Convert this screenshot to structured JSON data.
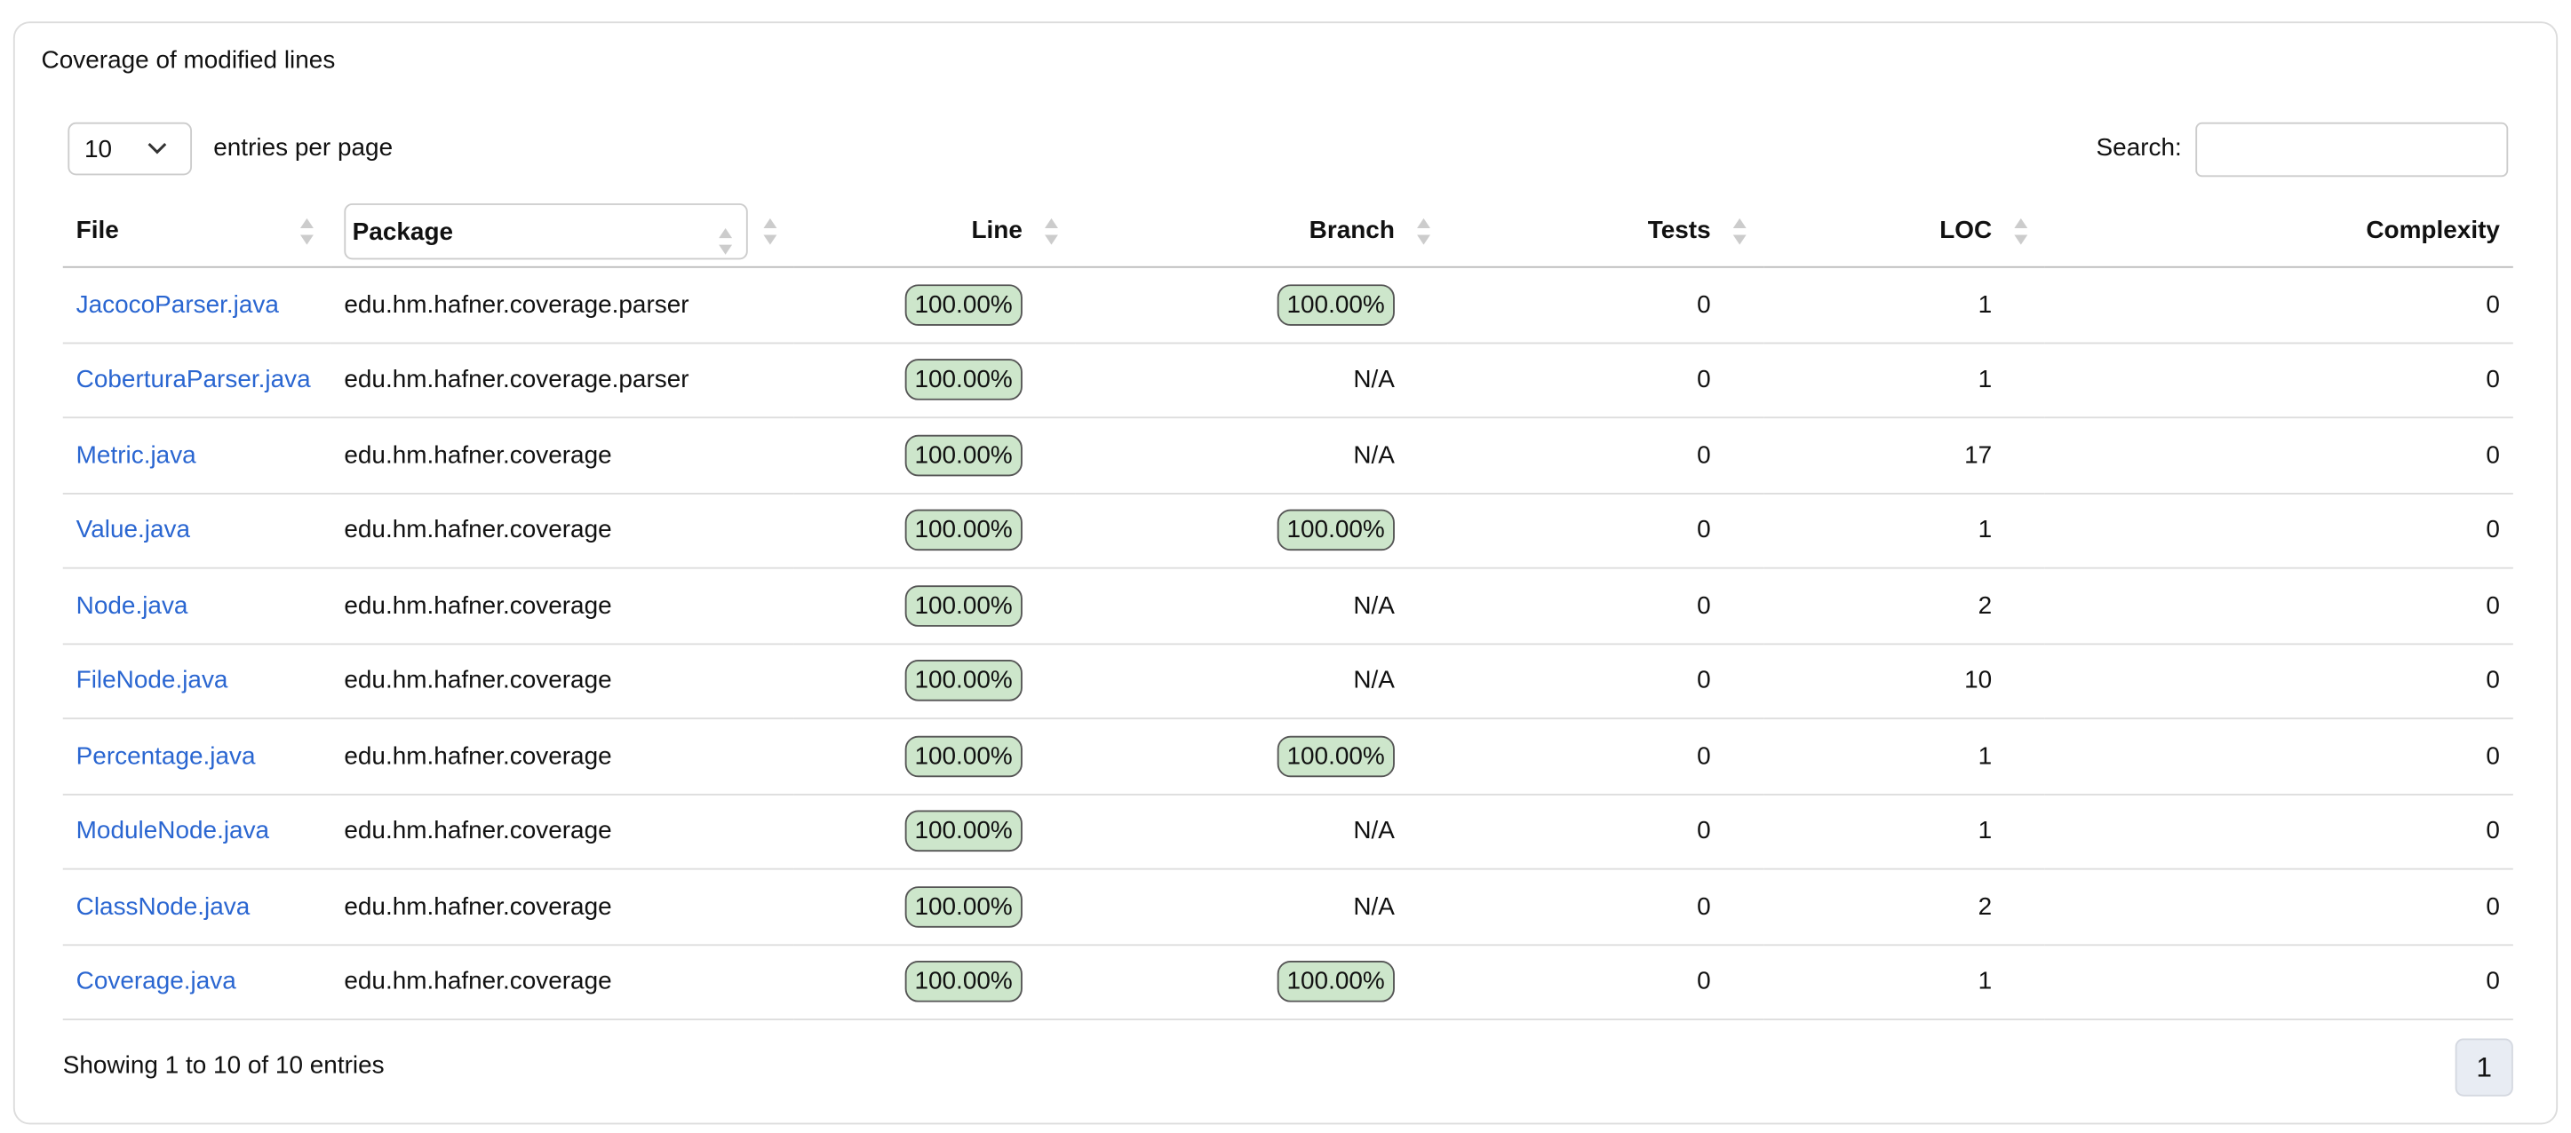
{
  "header": {
    "title": "Coverage of modified lines"
  },
  "controls": {
    "page_size": "10",
    "entries_label": "entries per page",
    "search_label": "Search:"
  },
  "table": {
    "columns": [
      "File",
      "Package",
      "Line",
      "Branch",
      "Tests",
      "LOC",
      "Complexity"
    ],
    "rows": [
      [
        "JacocoParser.java",
        "edu.hm.hafner.coverage.parser",
        "100.00%",
        "100.00%",
        0,
        1,
        0
      ],
      [
        "CoberturaParser.java",
        "edu.hm.hafner.coverage.parser",
        "100.00%",
        "N/A",
        0,
        1,
        0
      ],
      [
        "Metric.java",
        "edu.hm.hafner.coverage",
        "100.00%",
        "N/A",
        0,
        17,
        0
      ],
      [
        "Value.java",
        "edu.hm.hafner.coverage",
        "100.00%",
        "100.00%",
        0,
        1,
        0
      ],
      [
        "Node.java",
        "edu.hm.hafner.coverage",
        "100.00%",
        "N/A",
        0,
        2,
        0
      ],
      [
        "FileNode.java",
        "edu.hm.hafner.coverage",
        "100.00%",
        "N/A",
        0,
        10,
        0
      ],
      [
        "Percentage.java",
        "edu.hm.hafner.coverage",
        "100.00%",
        "100.00%",
        0,
        1,
        0
      ],
      [
        "ModuleNode.java",
        "edu.hm.hafner.coverage",
        "100.00%",
        "N/A",
        0,
        1,
        0
      ],
      [
        "ClassNode.java",
        "edu.hm.hafner.coverage",
        "100.00%",
        "N/A",
        0,
        2,
        0
      ],
      [
        "Coverage.java",
        "edu.hm.hafner.coverage",
        "100.00%",
        "100.00%",
        0,
        1,
        0
      ]
    ]
  },
  "footer": {
    "info": "Showing 1 to 10 of 10 entries",
    "page": "1"
  }
}
